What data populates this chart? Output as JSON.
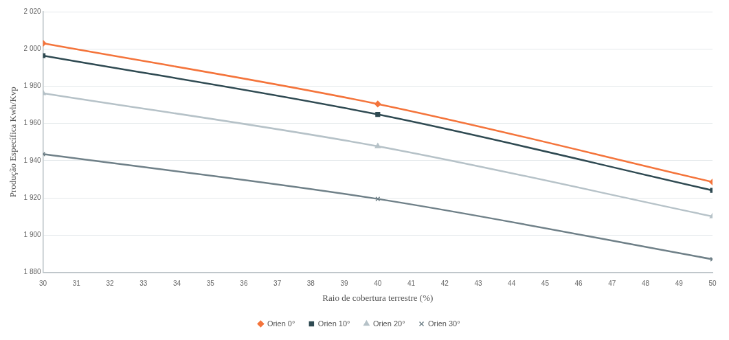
{
  "chart_data": {
    "type": "line",
    "xlabel": "Raio de cobertura terrestre (%)",
    "ylabel": "Produção Específica Kwh/Kvp",
    "x": [
      30,
      40,
      50
    ],
    "series": [
      {
        "name": "Orien 0°",
        "color": "#f4743b",
        "marker": "diamond",
        "values": [
          2003,
          1970.4,
          1928.5
        ]
      },
      {
        "name": "Orien 10°",
        "color": "#2f4a52",
        "marker": "square",
        "values": [
          1996.4,
          1964.8,
          1924
        ]
      },
      {
        "name": "Orien 20°",
        "color": "#b6c2c8",
        "marker": "triangle",
        "values": [
          1976.2,
          1947.7,
          1910
        ]
      },
      {
        "name": "Orien 30°",
        "color": "#6f8088",
        "marker": "cross",
        "values": [
          1943.5,
          1919.4,
          1887
        ]
      }
    ],
    "xlim": [
      30,
      50
    ],
    "xticks": [
      30,
      31,
      32,
      33,
      34,
      35,
      36,
      37,
      38,
      39,
      40,
      41,
      42,
      43,
      44,
      45,
      46,
      47,
      48,
      49,
      50
    ],
    "ylim": [
      1880,
      2020
    ],
    "yticks": [
      {
        "value": 1880,
        "label": "1 880"
      },
      {
        "value": 1900,
        "label": "1 900"
      },
      {
        "value": 1920,
        "label": "1 920"
      },
      {
        "value": 1940,
        "label": "1 940"
      },
      {
        "value": 1960,
        "label": "1 960"
      },
      {
        "value": 1980,
        "label": "1 980"
      },
      {
        "value": 2000,
        "label": "2 000"
      },
      {
        "value": 2020,
        "label": "2 020"
      }
    ],
    "grid": "y",
    "legend": "bottom"
  }
}
